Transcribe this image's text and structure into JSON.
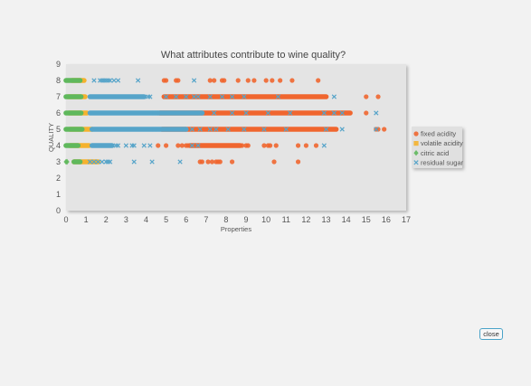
{
  "chart_data": {
    "type": "scatter",
    "title": "What attributes contribute to wine quality?",
    "xlabel": "Properties",
    "ylabel": "QUALITY",
    "xlim": [
      0,
      17
    ],
    "ylim": [
      0,
      9
    ],
    "x_ticks": [
      0,
      1,
      2,
      3,
      4,
      5,
      6,
      7,
      8,
      9,
      10,
      11,
      12,
      13,
      14,
      15,
      16,
      17
    ],
    "y_ticks": [
      0,
      1,
      2,
      3,
      4,
      5,
      6,
      7,
      8,
      9
    ],
    "grid": false,
    "legend_position": "right",
    "series": [
      {
        "name": "fixed acidity",
        "color": "#f0662f",
        "marker": "circle",
        "points": [
          [
            4.9,
            8
          ],
          [
            5.0,
            8
          ],
          [
            5.5,
            8
          ],
          [
            5.6,
            8
          ],
          [
            7.2,
            8
          ],
          [
            7.4,
            8
          ],
          [
            7.8,
            8
          ],
          [
            7.9,
            8
          ],
          [
            8.6,
            8
          ],
          [
            9.1,
            8
          ],
          [
            9.4,
            8
          ],
          [
            10.0,
            8
          ],
          [
            10.3,
            8
          ],
          [
            10.7,
            8
          ],
          [
            11.3,
            8
          ],
          [
            12.6,
            8
          ],
          [
            15.0,
            7
          ],
          [
            15.6,
            7
          ],
          [
            15.5,
            5
          ],
          [
            15.6,
            5
          ],
          [
            15.9,
            5
          ],
          [
            4.6,
            6
          ],
          [
            15.0,
            6
          ],
          [
            4.6,
            4
          ],
          [
            5.0,
            4
          ],
          [
            5.6,
            4
          ],
          [
            5.8,
            4
          ],
          [
            6.0,
            4
          ],
          [
            6.1,
            4
          ],
          [
            8.8,
            4
          ],
          [
            9.0,
            4
          ],
          [
            9.1,
            4
          ],
          [
            9.9,
            4
          ],
          [
            10.1,
            4
          ],
          [
            10.2,
            4
          ],
          [
            10.5,
            4
          ],
          [
            11.6,
            4
          ],
          [
            12.0,
            4
          ],
          [
            12.5,
            4
          ],
          [
            6.7,
            3
          ],
          [
            6.8,
            3
          ],
          [
            7.1,
            3
          ],
          [
            7.3,
            3
          ],
          [
            7.5,
            3
          ],
          [
            7.6,
            3
          ],
          [
            7.7,
            3
          ],
          [
            8.3,
            3
          ],
          [
            10.4,
            3
          ],
          [
            11.6,
            3
          ]
        ],
        "ranges": [
          {
            "y": 7,
            "from": 4.9,
            "to": 13.0
          },
          {
            "y": 6,
            "from": 4.7,
            "to": 14.2
          },
          {
            "y": 5,
            "from": 4.8,
            "to": 13.5
          },
          {
            "y": 4,
            "from": 6.2,
            "to": 8.7
          }
        ]
      },
      {
        "name": "volatile acidity",
        "color": "#f5b22e",
        "marker": "square",
        "points": [],
        "ranges": [
          {
            "y": 8,
            "from": 0.3,
            "to": 0.9
          },
          {
            "y": 7,
            "from": 0.1,
            "to": 0.95
          },
          {
            "y": 6,
            "from": 0.15,
            "to": 1.05
          },
          {
            "y": 5,
            "from": 0.2,
            "to": 1.3
          },
          {
            "y": 4,
            "from": 0.2,
            "to": 1.15
          },
          {
            "y": 3,
            "from": 0.4,
            "to": 1.6
          }
        ]
      },
      {
        "name": "citric acid",
        "color": "#5fb85c",
        "marker": "diamond",
        "points": [
          [
            0.05,
            3
          ],
          [
            0.0,
            3
          ]
        ],
        "ranges": [
          {
            "y": 8,
            "from": 0.0,
            "to": 0.7
          },
          {
            "y": 7,
            "from": 0.0,
            "to": 0.75
          },
          {
            "y": 6,
            "from": 0.0,
            "to": 0.75
          },
          {
            "y": 5,
            "from": 0.0,
            "to": 0.8
          },
          {
            "y": 4,
            "from": 0.0,
            "to": 0.6
          },
          {
            "y": 3,
            "from": 0.4,
            "to": 0.7
          }
        ]
      },
      {
        "name": "residual sugar",
        "color": "#56a4c9",
        "marker": "x",
        "points": [
          [
            1.4,
            8
          ],
          [
            1.7,
            8
          ],
          [
            1.8,
            8
          ],
          [
            1.9,
            8
          ],
          [
            2.0,
            8
          ],
          [
            2.1,
            8
          ],
          [
            2.2,
            8
          ],
          [
            2.4,
            8
          ],
          [
            2.6,
            8
          ],
          [
            3.6,
            8
          ],
          [
            6.4,
            8
          ],
          [
            4.1,
            7
          ],
          [
            4.2,
            7
          ],
          [
            5.0,
            7
          ],
          [
            5.5,
            7
          ],
          [
            6.0,
            7
          ],
          [
            6.4,
            7
          ],
          [
            6.6,
            7
          ],
          [
            7.2,
            7
          ],
          [
            7.8,
            7
          ],
          [
            8.3,
            7
          ],
          [
            8.9,
            7
          ],
          [
            10.6,
            7
          ],
          [
            13.4,
            7
          ],
          [
            4.4,
            6
          ],
          [
            5.4,
            6
          ],
          [
            6.5,
            6
          ],
          [
            7.4,
            6
          ],
          [
            8.3,
            6
          ],
          [
            9.0,
            6
          ],
          [
            10.1,
            6
          ],
          [
            11.2,
            6
          ],
          [
            12.9,
            6
          ],
          [
            13.4,
            6
          ],
          [
            13.8,
            6
          ],
          [
            15.5,
            6
          ],
          [
            4.4,
            5
          ],
          [
            5.1,
            5
          ],
          [
            5.9,
            5
          ],
          [
            6.3,
            5
          ],
          [
            6.7,
            5
          ],
          [
            7.2,
            5
          ],
          [
            7.5,
            5
          ],
          [
            8.1,
            5
          ],
          [
            8.9,
            5
          ],
          [
            9.9,
            5
          ],
          [
            11.0,
            5
          ],
          [
            13.0,
            5
          ],
          [
            13.8,
            5
          ],
          [
            15.5,
            5
          ],
          [
            2.5,
            4
          ],
          [
            2.6,
            4
          ],
          [
            3.0,
            4
          ],
          [
            3.3,
            4
          ],
          [
            3.4,
            4
          ],
          [
            3.9,
            4
          ],
          [
            4.2,
            4
          ],
          [
            6.3,
            4
          ],
          [
            6.6,
            4
          ],
          [
            12.9,
            4
          ],
          [
            1.2,
            3
          ],
          [
            1.4,
            3
          ],
          [
            1.6,
            3
          ],
          [
            1.8,
            3
          ],
          [
            2.0,
            3
          ],
          [
            2.1,
            3
          ],
          [
            2.2,
            3
          ],
          [
            3.4,
            3
          ],
          [
            4.3,
            3
          ],
          [
            5.7,
            3
          ]
        ],
        "ranges": [
          {
            "y": 7,
            "from": 1.2,
            "to": 3.9
          },
          {
            "y": 6,
            "from": 1.2,
            "to": 6.8
          },
          {
            "y": 5,
            "from": 1.3,
            "to": 6.0
          },
          {
            "y": 4,
            "from": 1.3,
            "to": 2.3
          }
        ]
      }
    ]
  },
  "close_button": {
    "label": "close"
  }
}
